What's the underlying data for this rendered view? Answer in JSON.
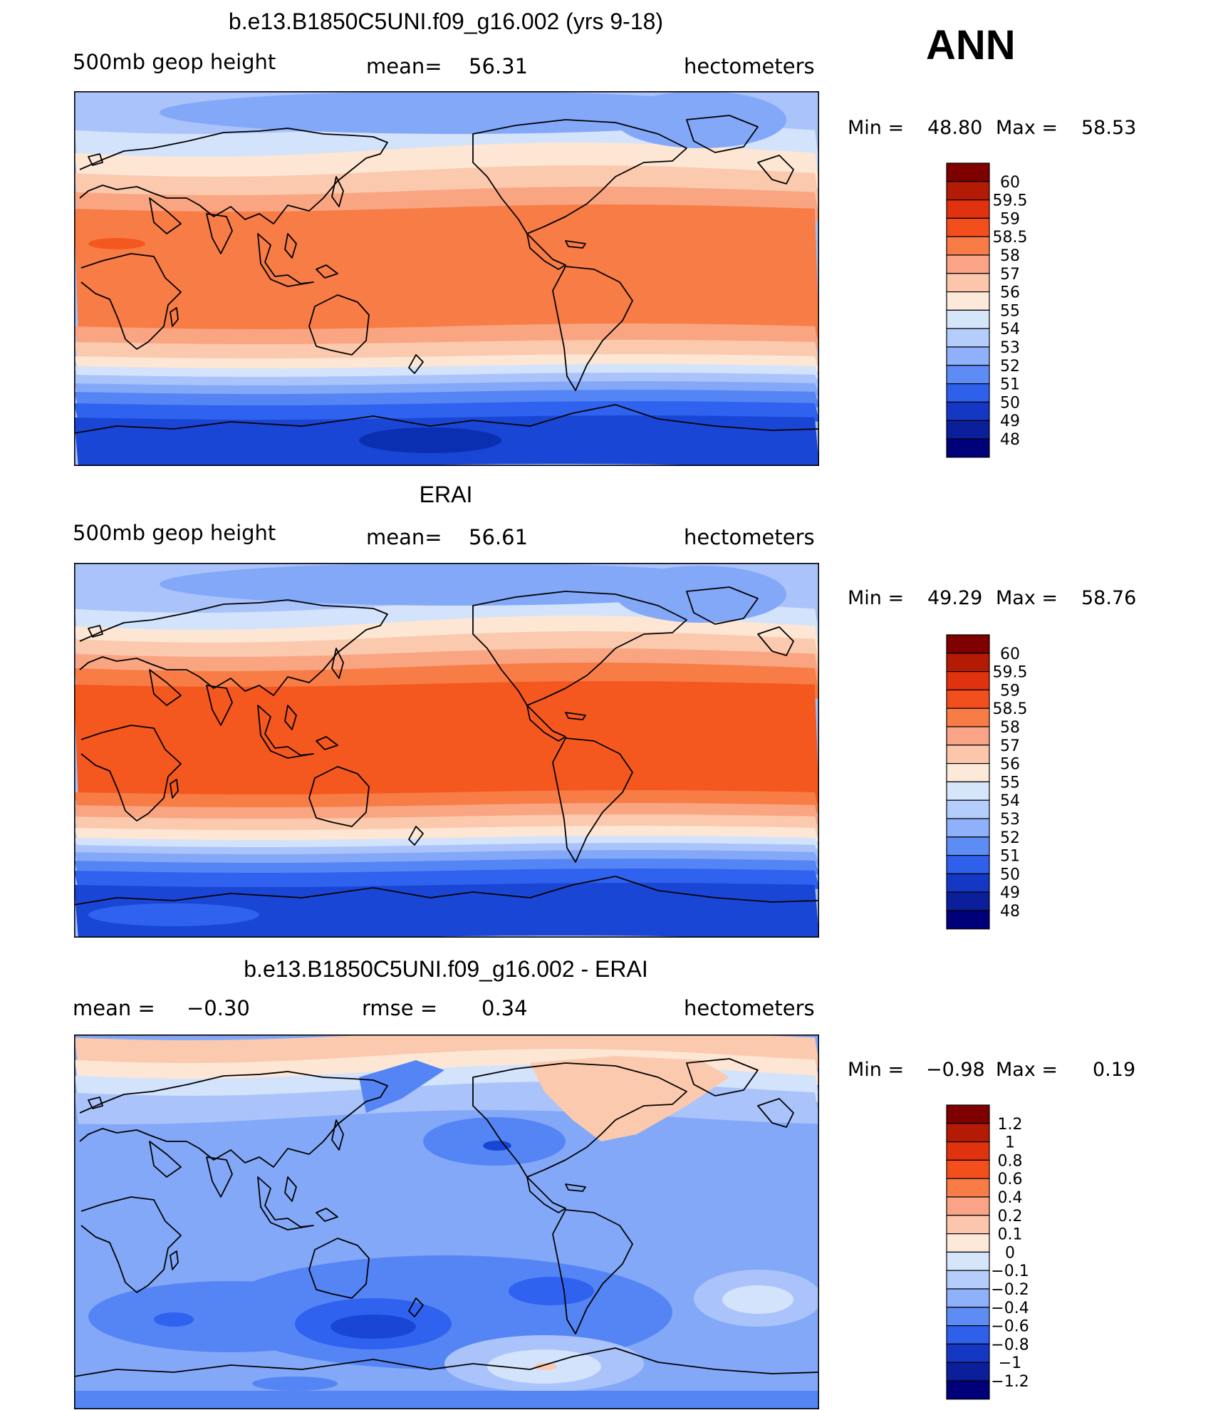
{
  "season": "ANN",
  "panels": [
    {
      "title": "b.e13.B1850C5UNI.f09_g16.002 (yrs 9-18)",
      "left": "500mb  geop  height",
      "center_label": "mean=",
      "center_value": "56.31",
      "right": "hectometers",
      "min_label": "Min  =",
      "min_value": "48.80",
      "max_label": "Max  =",
      "max_value": "58.53",
      "levels": [
        "60",
        "59.5",
        "59",
        "58.5",
        "58",
        "57",
        "56",
        "55",
        "54",
        "53",
        "52",
        "51",
        "50",
        "49",
        "48"
      ]
    },
    {
      "title": "ERAI",
      "left": "500mb  geop  height",
      "center_label": "mean=",
      "center_value": "56.61",
      "right": "hectometers",
      "min_label": "Min  =",
      "min_value": "49.29",
      "max_label": "Max  =",
      "max_value": "58.76",
      "levels": [
        "60",
        "59.5",
        "59",
        "58.5",
        "58",
        "57",
        "56",
        "55",
        "54",
        "53",
        "52",
        "51",
        "50",
        "49",
        "48"
      ]
    },
    {
      "title": "b.e13.B1850C5UNI.f09_g16.002 - ERAI",
      "left_label": "mean  =",
      "left_value": "−0.30",
      "center_label": "rmse  =",
      "center_value": "0.34",
      "right": "hectometers",
      "min_label": "Min  =",
      "min_value": "−0.98",
      "max_label": "Max  =",
      "max_value": "0.19",
      "levels": [
        "1.2",
        "1",
        "0.8",
        "0.6",
        "0.4",
        "0.2",
        "0.1",
        "0",
        "−0.1",
        "−0.2",
        "−0.4",
        "−0.6",
        "−0.8",
        "−1",
        "−1.2"
      ]
    }
  ],
  "colorbar_colors": [
    "#7f0000",
    "#b31b05",
    "#e0320f",
    "#f24f1c",
    "#f77c46",
    "#fba386",
    "#fcc6ad",
    "#fde9d9",
    "#d6e6fa",
    "#b4cdfa",
    "#8fb0fa",
    "#5d8cf5",
    "#2e60ec",
    "#1538c4",
    "#0a1f99",
    "#00007a"
  ],
  "map_colors": {
    "deep_blue": "#0a2fb0",
    "blue1": "#1a46d6",
    "blue2": "#2f62ef",
    "blue3": "#5585f4",
    "blue4": "#84a8f8",
    "blue5": "#aac3fa",
    "blue6": "#d3e3fb",
    "cream": "#fde6d4",
    "salmon1": "#fbc9ae",
    "salmon2": "#f9a582",
    "orange1": "#f77c46",
    "orange2": "#f4581e",
    "land_line": "#000000"
  }
}
